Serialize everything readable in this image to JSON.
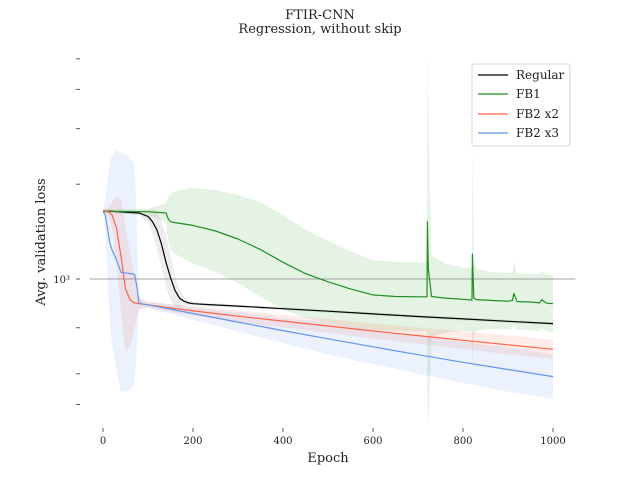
{
  "chart_data": {
    "type": "line",
    "title": "FTIR-CNN",
    "subtitle": "Regression, without skip",
    "xlabel": "Epoch",
    "ylabel": "Avg. validation loss",
    "ytick_label": "10³",
    "yscale": "log",
    "xlim": [
      -30,
      1050
    ],
    "x_ticks": [
      0,
      200,
      400,
      600,
      800,
      1000
    ],
    "reference_line": 1000,
    "grid": false,
    "legend_position": "top-right",
    "series": [
      {
        "name": "Regular",
        "color": "#000000",
        "band_color": "#777777",
        "x": [
          0,
          20,
          50,
          80,
          100,
          110,
          120,
          130,
          140,
          150,
          160,
          170,
          180,
          190,
          200,
          230,
          300,
          400,
          500,
          600,
          700,
          800,
          900,
          1000
        ],
        "y": [
          1640,
          1640,
          1630,
          1620,
          1580,
          1520,
          1430,
          1290,
          1130,
          1010,
          920,
          870,
          850,
          840,
          835,
          830,
          820,
          805,
          790,
          775,
          760,
          747,
          734,
          722
        ],
        "band_halfwidth": [
          0.005,
          0.005,
          0.005,
          0.006,
          0.02,
          0.04,
          0.06,
          0.07,
          0.08,
          0.07,
          0.05,
          0.03,
          0.015,
          0.008,
          0.006,
          0.005,
          0.005,
          0.005,
          0.005,
          0.005,
          0.005,
          0.005,
          0.005,
          0.005
        ]
      },
      {
        "name": "FB1",
        "color": "#228B22",
        "band_color": "#2ca02c",
        "x": [
          0,
          100,
          140,
          145,
          150,
          160,
          200,
          250,
          300,
          350,
          400,
          450,
          500,
          550,
          600,
          650,
          700,
          720,
          721,
          723,
          730,
          760,
          800,
          820,
          821,
          824,
          830,
          860,
          900,
          910,
          913,
          920,
          950,
          970,
          975,
          985,
          1000
        ],
        "y": [
          1640,
          1635,
          1620,
          1550,
          1520,
          1510,
          1480,
          1420,
          1340,
          1240,
          1130,
          1040,
          980,
          930,
          890,
          880,
          878,
          878,
          1520,
          1080,
          880,
          870,
          862,
          858,
          1200,
          870,
          860,
          855,
          850,
          855,
          900,
          848,
          845,
          840,
          860,
          838,
          835
        ],
        "band_halfwidth": [
          0.005,
          0.01,
          0.03,
          0.07,
          0.09,
          0.1,
          0.12,
          0.13,
          0.14,
          0.15,
          0.15,
          0.14,
          0.13,
          0.12,
          0.11,
          0.11,
          0.11,
          0.11,
          0.55,
          0.5,
          0.13,
          0.11,
          0.1,
          0.1,
          0.35,
          0.12,
          0.1,
          0.09,
          0.09,
          0.09,
          0.1,
          0.09,
          0.09,
          0.09,
          0.09,
          0.09,
          0.09
        ]
      },
      {
        "name": "FB2 x2",
        "color": "#FF6347",
        "band_color": "#FF6347",
        "x": [
          0,
          10,
          20,
          30,
          40,
          50,
          60,
          70,
          80,
          100,
          200,
          300,
          400,
          500,
          600,
          700,
          800,
          900,
          1000
        ],
        "y": [
          1640,
          1640,
          1600,
          1450,
          1180,
          930,
          860,
          840,
          835,
          828,
          792,
          762,
          735,
          709,
          684,
          661,
          639,
          618,
          598
        ],
        "band_halfwidth": [
          0.005,
          0.01,
          0.04,
          0.1,
          0.18,
          0.2,
          0.15,
          0.08,
          0.02,
          0.01,
          0.015,
          0.018,
          0.02,
          0.022,
          0.024,
          0.026,
          0.028,
          0.03,
          0.03
        ]
      },
      {
        "name": "FB2 x3",
        "color": "#6495ED",
        "band_color": "#6495ED",
        "x": [
          0,
          5,
          10,
          15,
          20,
          30,
          40,
          60,
          70,
          75,
          80,
          90,
          100,
          200,
          300,
          400,
          500,
          600,
          700,
          800,
          900,
          1000
        ],
        "y": [
          1640,
          1600,
          1450,
          1300,
          1240,
          1150,
          1050,
          1040,
          1035,
          950,
          840,
          832,
          828,
          777,
          730,
          686,
          646,
          609,
          575,
          544,
          516,
          490
        ],
        "band_halfwidth": [
          0.005,
          0.05,
          0.15,
          0.25,
          0.3,
          0.35,
          0.38,
          0.37,
          0.35,
          0.2,
          0.02,
          0.01,
          0.01,
          0.02,
          0.03,
          0.04,
          0.05,
          0.055,
          0.06,
          0.065,
          0.07,
          0.07
        ]
      }
    ]
  }
}
